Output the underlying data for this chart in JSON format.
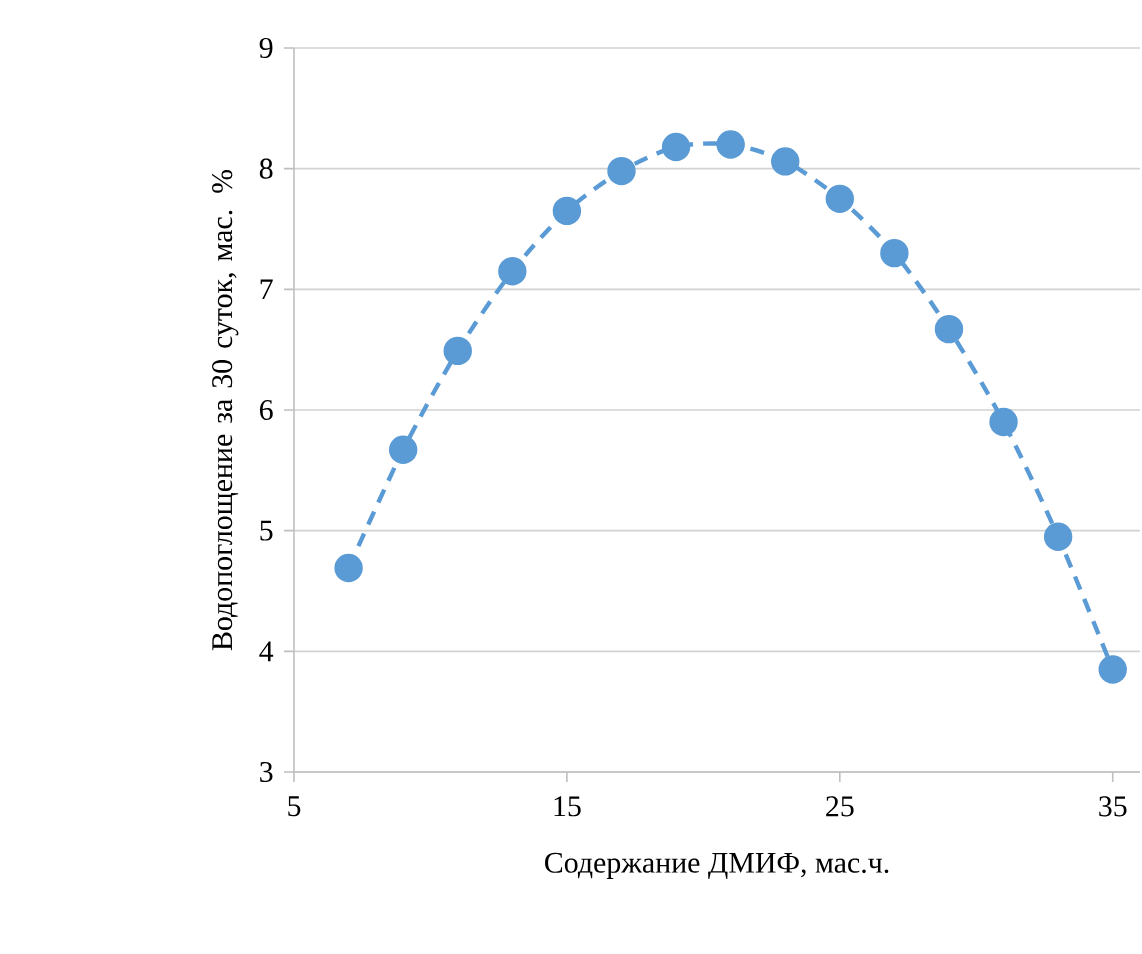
{
  "chart_data": {
    "type": "line",
    "xlabel": "Содержание ДМИФ, мас.ч.",
    "ylabel": "Водопоглощение за 30 суток, мас. %",
    "x": [
      7,
      9,
      11,
      13,
      15,
      17,
      19,
      21,
      23,
      25,
      27,
      29,
      31,
      33,
      35
    ],
    "series": [
      {
        "color": "#5b9bd5",
        "values": [
          4.69,
          5.67,
          6.49,
          7.15,
          7.65,
          7.98,
          8.18,
          8.2,
          8.06,
          7.75,
          7.3,
          6.67,
          5.9,
          4.95,
          3.85
        ]
      }
    ],
    "xlim": [
      5,
      36
    ],
    "ylim": [
      3,
      9
    ],
    "xticks": [
      5,
      15,
      25,
      35
    ],
    "yticks": [
      3,
      4,
      5,
      6,
      7,
      8,
      9
    ],
    "grid": "y",
    "marker": "circle",
    "line_style": "dashed"
  }
}
